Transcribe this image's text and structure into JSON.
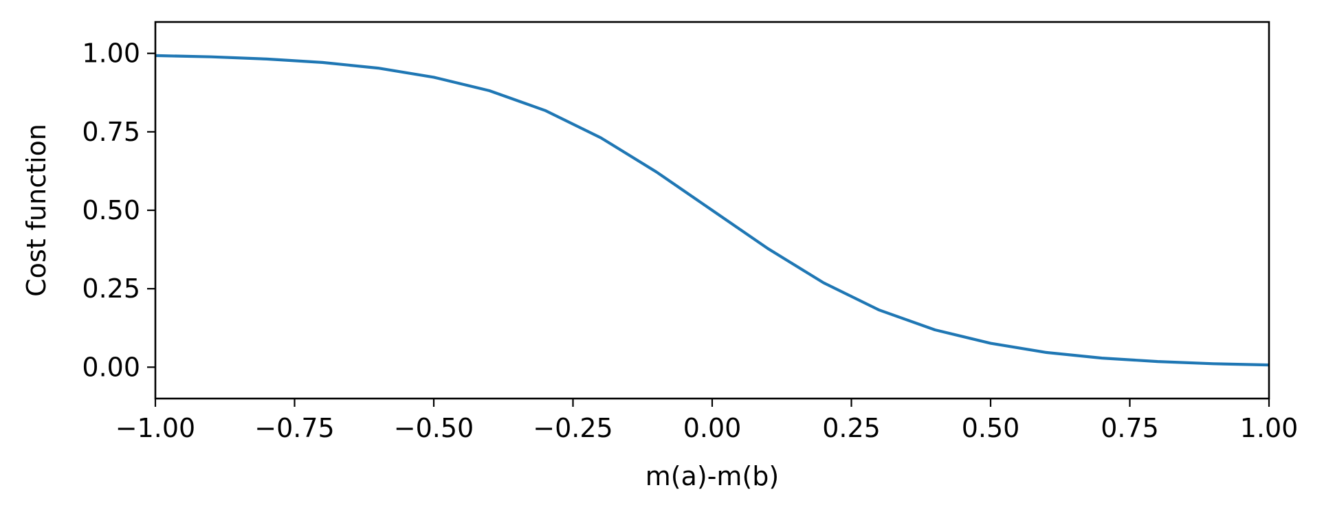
{
  "chart_data": {
    "type": "line",
    "title": "",
    "xlabel": "m(a)-m(b)",
    "ylabel": "Cost function",
    "xlim": [
      -1.0,
      1.0
    ],
    "ylim": [
      -0.1,
      1.1
    ],
    "xticks": [
      -1.0,
      -0.75,
      -0.5,
      -0.25,
      0.0,
      0.25,
      0.5,
      0.75,
      1.0
    ],
    "xtick_labels": [
      "−1.00",
      "−0.75",
      "−0.50",
      "−0.25",
      "0.00",
      "0.25",
      "0.50",
      "0.75",
      "1.00"
    ],
    "yticks": [
      0.0,
      0.25,
      0.5,
      0.75,
      1.0
    ],
    "ytick_labels": [
      "0.00",
      "0.25",
      "0.50",
      "0.75",
      "1.00"
    ],
    "grid": false,
    "legend": "none",
    "series": [
      {
        "color": "#1f77b4",
        "x": [
          -1.0,
          -0.9,
          -0.8,
          -0.7,
          -0.6,
          -0.5,
          -0.4,
          -0.3,
          -0.2,
          -0.1,
          0.0,
          0.1,
          0.2,
          0.3,
          0.4,
          0.5,
          0.6,
          0.7,
          0.8,
          0.9,
          1.0
        ],
        "y": [
          0.993,
          0.989,
          0.982,
          0.971,
          0.953,
          0.924,
          0.881,
          0.818,
          0.731,
          0.622,
          0.5,
          0.378,
          0.269,
          0.182,
          0.119,
          0.076,
          0.047,
          0.029,
          0.018,
          0.011,
          0.007
        ]
      }
    ]
  }
}
